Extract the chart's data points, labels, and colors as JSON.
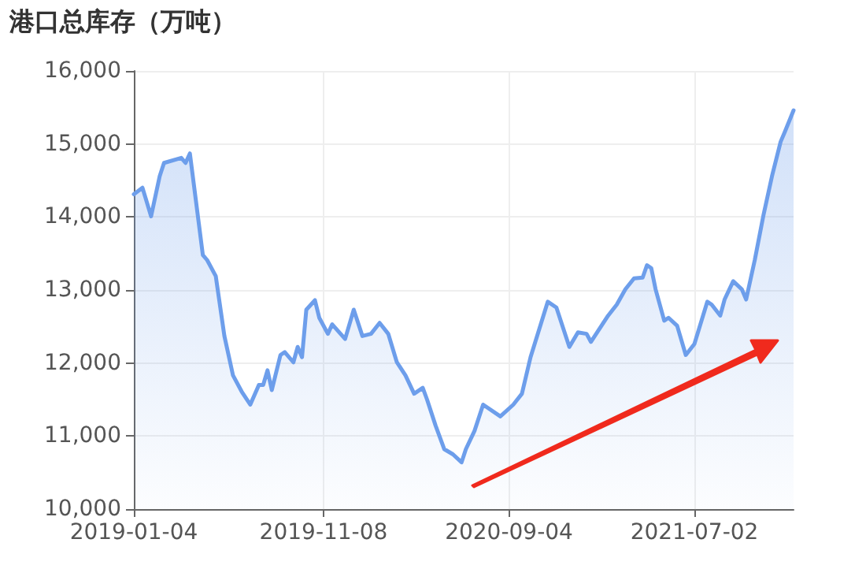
{
  "chart_data": {
    "type": "area",
    "title": "港口总库存（万吨）",
    "x": [
      "2019-01-04",
      "2019-01-18",
      "2019-02-01",
      "2019-02-15",
      "2019-02-22",
      "2019-03-22",
      "2019-03-29",
      "2019-04-05",
      "2019-04-26",
      "2019-05-03",
      "2019-05-17",
      "2019-05-31",
      "2019-06-14",
      "2019-06-28",
      "2019-07-12",
      "2019-07-26",
      "2019-08-02",
      "2019-08-09",
      "2019-08-16",
      "2019-08-30",
      "2019-09-06",
      "2019-09-20",
      "2019-09-27",
      "2019-10-04",
      "2019-10-11",
      "2019-10-25",
      "2019-11-01",
      "2019-11-15",
      "2019-11-22",
      "2019-12-13",
      "2019-12-27",
      "2020-01-10",
      "2020-01-24",
      "2020-02-07",
      "2020-02-21",
      "2020-03-06",
      "2020-03-20",
      "2020-04-03",
      "2020-04-17",
      "2020-04-24",
      "2020-05-08",
      "2020-05-22",
      "2020-06-05",
      "2020-06-19",
      "2020-06-26",
      "2020-07-10",
      "2020-07-24",
      "2020-08-21",
      "2020-09-11",
      "2020-09-25",
      "2020-10-09",
      "2020-11-06",
      "2020-11-20",
      "2020-12-11",
      "2020-12-25",
      "2021-01-08",
      "2021-01-15",
      "2021-01-29",
      "2021-02-12",
      "2021-02-26",
      "2021-03-12",
      "2021-03-26",
      "2021-04-09",
      "2021-04-16",
      "2021-04-23",
      "2021-04-30",
      "2021-05-14",
      "2021-05-21",
      "2021-06-04",
      "2021-06-18",
      "2021-07-02",
      "2021-07-23",
      "2021-07-30",
      "2021-08-13",
      "2021-08-20",
      "2021-09-03",
      "2021-09-17",
      "2021-09-24",
      "2021-10-08",
      "2021-10-22",
      "2021-11-05",
      "2021-11-19",
      "2021-11-26",
      "2021-12-10"
    ],
    "series": [
      {
        "color": "#6d9eeb",
        "values": [
          14310,
          14400,
          14010,
          14560,
          14740,
          14810,
          14740,
          14870,
          13480,
          13410,
          13190,
          12370,
          11830,
          11610,
          11430,
          11700,
          11700,
          11900,
          11630,
          12110,
          12150,
          12010,
          12220,
          12080,
          12730,
          12860,
          12620,
          12400,
          12530,
          12330,
          12730,
          12370,
          12400,
          12550,
          12400,
          12010,
          11830,
          11580,
          11660,
          11500,
          11140,
          10820,
          10750,
          10640,
          10820,
          11070,
          11430,
          11270,
          11430,
          11580,
          12080,
          12840,
          12760,
          12220,
          12420,
          12400,
          12290,
          12470,
          12650,
          12800,
          13010,
          13160,
          13170,
          13340,
          13300,
          13010,
          12580,
          12620,
          12510,
          12110,
          12260,
          12840,
          12800,
          12650,
          12870,
          13120,
          13010,
          12870,
          13410,
          14020,
          14560,
          15030,
          15170,
          15460
        ]
      }
    ],
    "xlim": [
      "2019-01-04",
      "2021-12-10"
    ],
    "xticks": [
      "2019-01-04",
      "2019-11-08",
      "2020-09-04",
      "2021-07-02"
    ],
    "ylim": [
      10000,
      16000
    ],
    "yticks": [
      {
        "value": 10000,
        "label": "10,000"
      },
      {
        "value": 11000,
        "label": "11,000"
      },
      {
        "value": 12000,
        "label": "12,000"
      },
      {
        "value": 13000,
        "label": "13,000"
      },
      {
        "value": 14000,
        "label": "14,000"
      },
      {
        "value": 15000,
        "label": "15,000"
      },
      {
        "value": 16000,
        "label": "16,000"
      }
    ],
    "grid": true,
    "marker": "none",
    "line_style": "solid"
  }
}
